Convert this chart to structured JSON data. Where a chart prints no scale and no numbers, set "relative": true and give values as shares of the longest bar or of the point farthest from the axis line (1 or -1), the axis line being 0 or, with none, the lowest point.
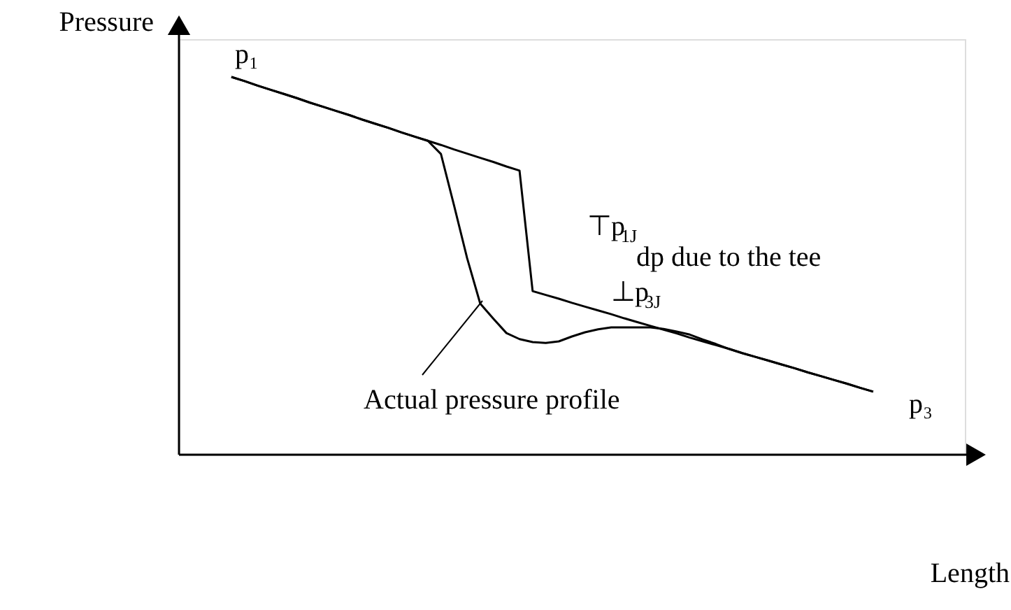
{
  "chart_data": {
    "type": "line",
    "relative": true,
    "xlabel": "Length",
    "ylabel": "Pressure",
    "categories": [
      null,
      null,
      null,
      null,
      null,
      null,
      null,
      null,
      null,
      null,
      null,
      null,
      null,
      null,
      null,
      null,
      null,
      null,
      null,
      null,
      null,
      null,
      null,
      null,
      null,
      null,
      null,
      null,
      null,
      null,
      null,
      null,
      null,
      null,
      null,
      null,
      null,
      null,
      null,
      null,
      null,
      null,
      null,
      null,
      null,
      null,
      null,
      null,
      null,
      null,
      null,
      null,
      null,
      null,
      null,
      null,
      null,
      null,
      null,
      null,
      null
    ],
    "series": [
      {
        "color": "#000000",
        "values": [
          null,
          null,
          null,
          null,
          1.0,
          0.989,
          0.977,
          0.966,
          0.955,
          0.944,
          0.932,
          0.921,
          0.91,
          0.899,
          0.887,
          0.876,
          0.865,
          0.853,
          0.842,
          0.831,
          0.82,
          0.808,
          0.797,
          0.786,
          0.775,
          0.763,
          0.752,
          0.433,
          0.423,
          0.413,
          0.402,
          0.392,
          0.382,
          0.372,
          0.361,
          0.351,
          0.341,
          0.331,
          0.321,
          0.31,
          0.3,
          0.29,
          0.28,
          0.269,
          0.259,
          0.249,
          0.239,
          0.229,
          0.218,
          0.208,
          0.198,
          0.188,
          0.177,
          0.167,
          null,
          null,
          null,
          null,
          null,
          null,
          null
        ]
      },
      {
        "color": "#000000",
        "values": [
          null,
          null,
          null,
          null,
          1.0,
          0.989,
          0.977,
          0.966,
          0.955,
          0.944,
          0.932,
          0.921,
          0.91,
          0.899,
          0.887,
          0.876,
          0.865,
          0.853,
          0.842,
          0.831,
          0.796,
          0.66,
          0.52,
          0.4,
          0.36,
          0.322,
          0.306,
          0.298,
          0.296,
          0.3,
          0.313,
          0.324,
          0.332,
          0.337,
          0.337,
          0.337,
          0.337,
          0.333,
          0.326,
          0.318,
          0.305,
          0.293,
          0.28,
          0.269,
          0.259,
          0.249,
          0.239,
          0.229,
          0.218,
          0.208,
          0.198,
          0.188,
          0.177,
          0.167,
          null,
          null,
          null,
          null,
          null,
          null,
          null
        ]
      }
    ],
    "annotations": [
      "p₁",
      "⊤p$_{1J}$",
      "dp due to the tee",
      "⊥p$_{3J}$",
      "p₃",
      "Actual pressure profile"
    ]
  }
}
